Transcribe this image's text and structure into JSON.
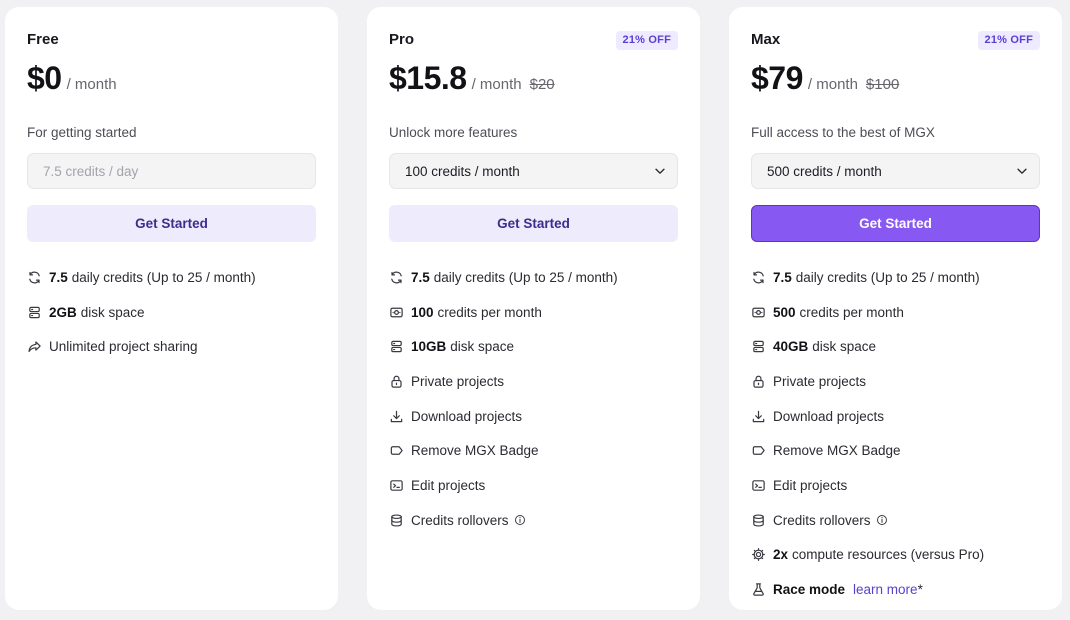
{
  "colors": {
    "accent": "#8858f2",
    "accent_soft": "#eeebfd",
    "badge_text": "#5b3fcf",
    "page_bg": "#f1f1f4"
  },
  "plans": {
    "free": {
      "name": "Free",
      "price": "$0",
      "period": "/ month",
      "description": "For getting started",
      "select_value": "7.5 credits / day",
      "cta": "Get Started",
      "features": [
        {
          "icon": "refresh-icon",
          "bold": "7.5",
          "text": "daily credits (Up to 25 / month)"
        },
        {
          "icon": "storage-icon",
          "bold": "2GB",
          "text": "disk space"
        },
        {
          "icon": "share-icon",
          "bold": "",
          "text": "Unlimited project sharing"
        }
      ]
    },
    "pro": {
      "name": "Pro",
      "badge": "21% OFF",
      "price": "$15.8",
      "period": "/ month",
      "old_price": "$20",
      "description": "Unlock more features",
      "select_value": "100 credits / month",
      "cta": "Get Started",
      "features": [
        {
          "icon": "refresh-icon",
          "bold": "7.5",
          "text": "daily credits (Up to 25 / month)"
        },
        {
          "icon": "credits-icon",
          "bold": "100",
          "text": "credits per month"
        },
        {
          "icon": "storage-icon",
          "bold": "10GB",
          "text": "disk space"
        },
        {
          "icon": "lock-icon",
          "bold": "",
          "text": "Private projects"
        },
        {
          "icon": "download-icon",
          "bold": "",
          "text": "Download projects"
        },
        {
          "icon": "tag-icon",
          "bold": "",
          "text": "Remove MGX Badge"
        },
        {
          "icon": "terminal-icon",
          "bold": "",
          "text": "Edit projects"
        },
        {
          "icon": "database-icon",
          "bold": "",
          "text": "Credits rollovers"
        }
      ]
    },
    "max": {
      "name": "Max",
      "badge": "21% OFF",
      "price": "$79",
      "period": "/ month",
      "old_price": "$100",
      "description": "Full access to the best of MGX",
      "select_value": "500 credits / month",
      "cta": "Get Started",
      "features": [
        {
          "icon": "refresh-icon",
          "bold": "7.5",
          "text": "daily credits (Up to 25 / month)"
        },
        {
          "icon": "credits-icon",
          "bold": "500",
          "text": "credits per month"
        },
        {
          "icon": "storage-icon",
          "bold": "40GB",
          "text": "disk space"
        },
        {
          "icon": "lock-icon",
          "bold": "",
          "text": "Private projects"
        },
        {
          "icon": "download-icon",
          "bold": "",
          "text": "Download projects"
        },
        {
          "icon": "tag-icon",
          "bold": "",
          "text": "Remove MGX Badge"
        },
        {
          "icon": "terminal-icon",
          "bold": "",
          "text": "Edit projects"
        },
        {
          "icon": "database-icon",
          "bold": "",
          "text": "Credits rollovers"
        },
        {
          "icon": "cpu-icon",
          "bold": "2x",
          "text": "compute resources (versus Pro)"
        },
        {
          "icon": "flask-icon",
          "bold": "Race mode",
          "text": "",
          "link": "learn more",
          "link_tail": "*"
        }
      ]
    }
  }
}
